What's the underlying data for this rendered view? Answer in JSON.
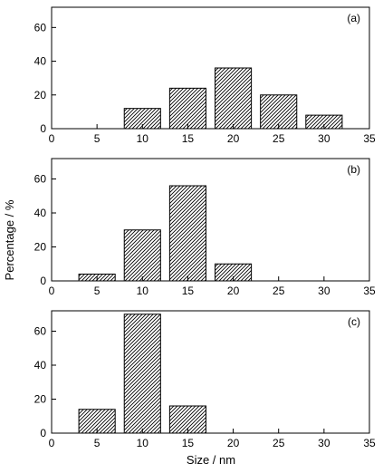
{
  "chart_data": {
    "type": "bar",
    "xlabel": "Size / nm",
    "ylabel": "Percentage / %",
    "xlim": [
      0,
      35
    ],
    "xticks": [
      0,
      5,
      10,
      15,
      20,
      25,
      30,
      35
    ],
    "ylim": [
      0,
      72
    ],
    "yticks": [
      0,
      20,
      40,
      60
    ],
    "bar_width": 4,
    "bar_fill": "diagonal-hatch",
    "grid": false,
    "panels": [
      {
        "label": "(a)",
        "x": [
          10,
          15,
          20,
          25,
          30
        ],
        "values": [
          12,
          24,
          36,
          20,
          8
        ]
      },
      {
        "label": "(b)",
        "x": [
          5,
          10,
          15,
          20
        ],
        "values": [
          4,
          30,
          56,
          10
        ]
      },
      {
        "label": "(c)",
        "x": [
          5,
          10,
          15
        ],
        "values": [
          14,
          70,
          16
        ]
      }
    ]
  }
}
